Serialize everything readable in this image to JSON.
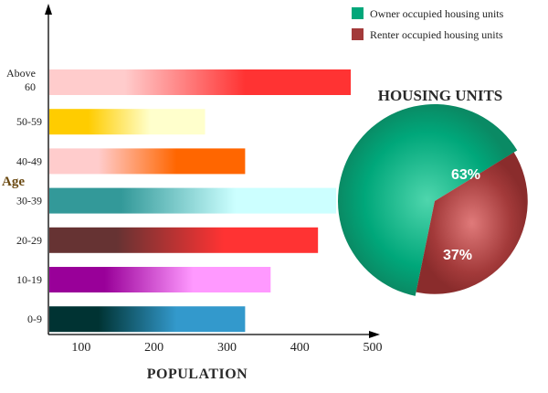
{
  "chart_data": [
    {
      "type": "bar",
      "orientation": "horizontal",
      "xlabel": "POPULATION",
      "ylabel": "Age",
      "xlim": [
        55,
        500
      ],
      "xticks": [
        100,
        200,
        300,
        400,
        500
      ],
      "categories": [
        "Above 60",
        "50-59",
        "40-49",
        "30-39",
        "20-29",
        "10-19",
        "0-9"
      ],
      "values": [
        470,
        270,
        325,
        450,
        425,
        360,
        325
      ],
      "colors": [
        [
          "#ffcccc",
          "#ff3333"
        ],
        [
          "#ffcc00",
          "#ffffcc"
        ],
        [
          "#ffcccc",
          "#ff6600"
        ],
        [
          "#339999",
          "#ccffff"
        ],
        [
          "#663333",
          "#ff3333"
        ],
        [
          "#990099",
          "#ff99ff"
        ],
        [
          "#003333",
          "#3399cc"
        ]
      ],
      "grid": false
    },
    {
      "type": "pie",
      "title": "HOUSING UNITS",
      "labels": [
        "Owner occupied housing units",
        "Renter occupied housing units"
      ],
      "values": [
        63,
        37
      ],
      "value_labels": [
        "63%",
        "37%"
      ],
      "colors": [
        "#00a77a",
        "#a33a3a"
      ],
      "legend": "top-right"
    }
  ]
}
